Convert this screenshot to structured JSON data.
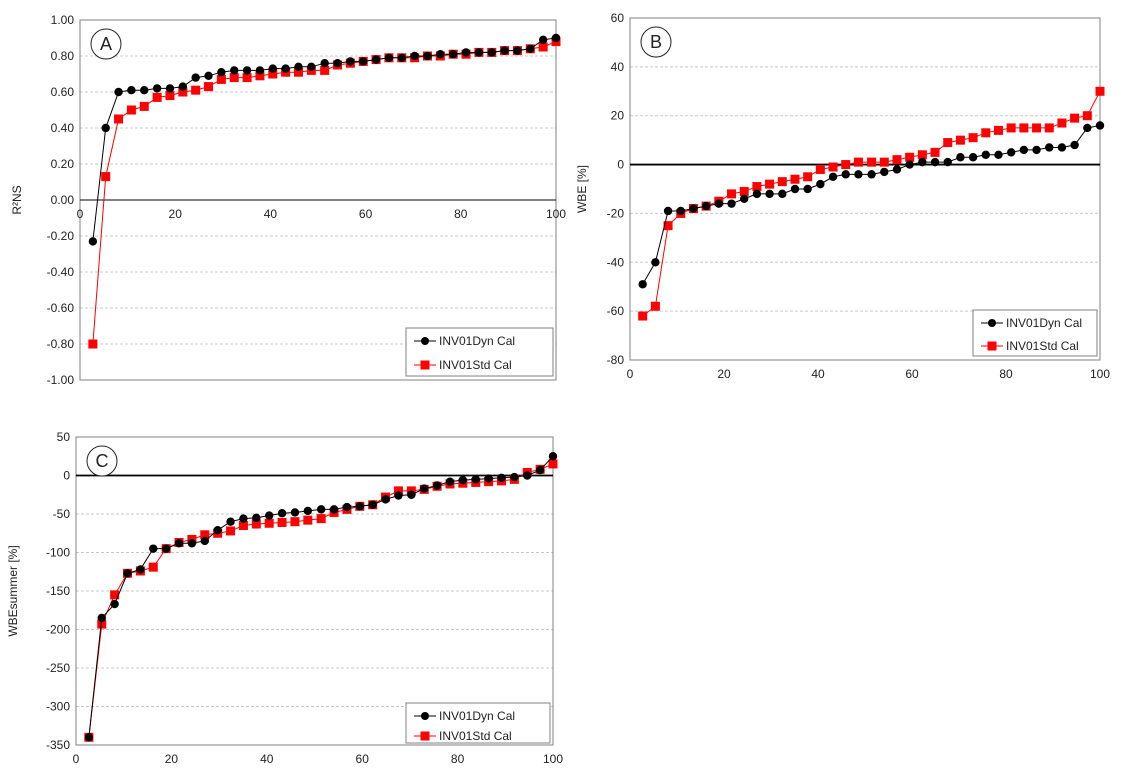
{
  "chart_data": [
    {
      "type": "line",
      "panel_label": "A",
      "ylabel": "R²NS",
      "xlim": [
        0,
        100
      ],
      "ylim": [
        -1.0,
        1.0
      ],
      "xticks": [
        "0",
        "20",
        "40",
        "60",
        "80",
        "100"
      ],
      "yticks": [
        "-1.00",
        "-0.80",
        "-0.60",
        "-0.40",
        "-0.20",
        "0.00",
        "0.20",
        "0.40",
        "0.60",
        "0.80",
        "1.00"
      ],
      "grid": true,
      "legend_position": "bottom-right",
      "series": [
        {
          "name": "INV01Dyn Cal",
          "color": "#000000",
          "marker": "circle",
          "x": [
            2.7,
            5.4,
            8.1,
            10.8,
            13.5,
            16.2,
            18.9,
            21.6,
            24.3,
            27.0,
            29.7,
            32.4,
            35.1,
            37.8,
            40.5,
            43.2,
            45.9,
            48.6,
            51.4,
            54.1,
            56.8,
            59.5,
            62.2,
            64.9,
            67.6,
            70.3,
            73.0,
            75.7,
            78.4,
            81.1,
            83.8,
            86.5,
            89.2,
            91.9,
            94.6,
            97.3,
            100
          ],
          "y": [
            -0.23,
            0.4,
            0.6,
            0.61,
            0.61,
            0.62,
            0.62,
            0.63,
            0.68,
            0.69,
            0.71,
            0.72,
            0.72,
            0.72,
            0.73,
            0.73,
            0.74,
            0.74,
            0.76,
            0.76,
            0.77,
            0.77,
            0.78,
            0.79,
            0.79,
            0.8,
            0.8,
            0.81,
            0.81,
            0.82,
            0.82,
            0.82,
            0.83,
            0.83,
            0.84,
            0.89,
            0.9
          ]
        },
        {
          "name": "INV01Std  Cal",
          "color": "#ff0000",
          "marker": "square",
          "x": [
            2.7,
            5.4,
            8.1,
            10.8,
            13.5,
            16.2,
            18.9,
            21.6,
            24.3,
            27.0,
            29.7,
            32.4,
            35.1,
            37.8,
            40.5,
            43.2,
            45.9,
            48.6,
            51.4,
            54.1,
            56.8,
            59.5,
            62.2,
            64.9,
            67.6,
            70.3,
            73.0,
            75.7,
            78.4,
            81.1,
            83.8,
            86.5,
            89.2,
            91.9,
            94.6,
            97.3,
            100
          ],
          "y": [
            -0.8,
            0.13,
            0.45,
            0.5,
            0.52,
            0.57,
            0.58,
            0.6,
            0.61,
            0.63,
            0.67,
            0.68,
            0.68,
            0.69,
            0.7,
            0.71,
            0.71,
            0.72,
            0.72,
            0.75,
            0.76,
            0.77,
            0.78,
            0.79,
            0.79,
            0.79,
            0.8,
            0.8,
            0.81,
            0.81,
            0.82,
            0.82,
            0.83,
            0.83,
            0.84,
            0.85,
            0.88
          ]
        }
      ]
    },
    {
      "type": "line",
      "panel_label": "B",
      "ylabel": "WBE [%]",
      "xlim": [
        0,
        100
      ],
      "ylim": [
        -80,
        60
      ],
      "xticks": [
        "0",
        "20",
        "40",
        "60",
        "80",
        "100"
      ],
      "yticks": [
        "-80",
        "-60",
        "-40",
        "-20",
        "0",
        "20",
        "40",
        "60"
      ],
      "grid": true,
      "zero_line": true,
      "legend_position": "bottom-right",
      "series": [
        {
          "name": "INV01Dyn Cal",
          "color": "#000000",
          "marker": "circle",
          "x": [
            2.7,
            5.4,
            8.1,
            10.8,
            13.5,
            16.2,
            18.9,
            21.6,
            24.3,
            27.0,
            29.7,
            32.4,
            35.1,
            37.8,
            40.5,
            43.2,
            45.9,
            48.6,
            51.4,
            54.1,
            56.8,
            59.5,
            62.2,
            64.9,
            67.6,
            70.3,
            73.0,
            75.7,
            78.4,
            81.1,
            83.8,
            86.5,
            89.2,
            91.9,
            94.6,
            97.3,
            100
          ],
          "y": [
            -49,
            -40,
            -19,
            -19,
            -18,
            -17,
            -16,
            -16,
            -14,
            -12,
            -12,
            -12,
            -10,
            -10,
            -8,
            -5,
            -4,
            -4,
            -4,
            -3,
            -2,
            0,
            1,
            1,
            1,
            3,
            3,
            4,
            4,
            5,
            6,
            6,
            7,
            7,
            8,
            15,
            16
          ]
        },
        {
          "name": "INV01Std Cal",
          "color": "#ff0000",
          "marker": "square",
          "x": [
            2.7,
            5.4,
            8.1,
            10.8,
            13.5,
            16.2,
            18.9,
            21.6,
            24.3,
            27.0,
            29.7,
            32.4,
            35.1,
            37.8,
            40.5,
            43.2,
            45.9,
            48.6,
            51.4,
            54.1,
            56.8,
            59.5,
            62.2,
            64.9,
            67.6,
            70.3,
            73.0,
            75.7,
            78.4,
            81.1,
            83.8,
            86.5,
            89.2,
            91.9,
            94.6,
            97.3,
            100
          ],
          "y": [
            -62,
            -58,
            -25,
            -20,
            -18,
            -17,
            -15,
            -12,
            -11,
            -9,
            -8,
            -7,
            -6,
            -5,
            -2,
            -1,
            0,
            1,
            1,
            1,
            2,
            3,
            4,
            5,
            9,
            10,
            11,
            13,
            14,
            15,
            15,
            15,
            15,
            17,
            19,
            20,
            30
          ]
        }
      ]
    },
    {
      "type": "line",
      "panel_label": "C",
      "ylabel": "WBEsummer [%]",
      "xlim": [
        0,
        100
      ],
      "ylim": [
        -350,
        50
      ],
      "xticks": [
        "0",
        "20",
        "40",
        "60",
        "80",
        "100"
      ],
      "yticks": [
        "-350",
        "-300",
        "-250",
        "-200",
        "-150",
        "-100",
        "-50",
        "0",
        "50"
      ],
      "grid": true,
      "zero_line": true,
      "legend_position": "bottom-right",
      "series": [
        {
          "name": "INV01Dyn Cal",
          "color": "#000000",
          "marker": "circle",
          "x": [
            2.7,
            5.4,
            8.1,
            10.8,
            13.5,
            16.2,
            18.9,
            21.6,
            24.3,
            27.0,
            29.7,
            32.4,
            35.1,
            37.8,
            40.5,
            43.2,
            45.9,
            48.6,
            51.4,
            54.1,
            56.8,
            59.5,
            62.2,
            64.9,
            67.6,
            70.3,
            73.0,
            75.7,
            78.4,
            81.1,
            83.8,
            86.5,
            89.2,
            91.9,
            94.6,
            97.3,
            100
          ],
          "y": [
            -340,
            -185,
            -167,
            -127,
            -122,
            -95,
            -95,
            -88,
            -88,
            -85,
            -71,
            -60,
            -56,
            -55,
            -52,
            -49,
            -48,
            -46,
            -44,
            -44,
            -41,
            -40,
            -38,
            -31,
            -26,
            -25,
            -17,
            -13,
            -8,
            -6,
            -5,
            -4,
            -3,
            -2,
            0,
            7,
            25
          ]
        },
        {
          "name": "INV01Std Cal",
          "color": "#ff0000",
          "marker": "square",
          "x": [
            2.7,
            5.4,
            8.1,
            10.8,
            13.5,
            16.2,
            18.9,
            21.6,
            24.3,
            27.0,
            29.7,
            32.4,
            35.1,
            37.8,
            40.5,
            43.2,
            45.9,
            48.6,
            51.4,
            54.1,
            56.8,
            59.5,
            62.2,
            64.9,
            67.6,
            70.3,
            73.0,
            75.7,
            78.4,
            81.1,
            83.8,
            86.5,
            89.2,
            91.9,
            94.6,
            97.3,
            100
          ],
          "y": [
            -340,
            -193,
            -155,
            -127,
            -124,
            -119,
            -95,
            -87,
            -83,
            -77,
            -75,
            -72,
            -65,
            -63,
            -62,
            -61,
            -60,
            -58,
            -56,
            -48,
            -44,
            -40,
            -38,
            -28,
            -20,
            -20,
            -18,
            -14,
            -11,
            -10,
            -9,
            -8,
            -7,
            -5,
            4,
            8,
            15
          ]
        }
      ]
    }
  ]
}
